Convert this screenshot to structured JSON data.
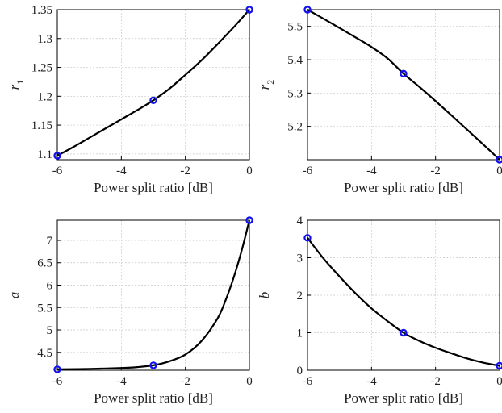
{
  "chart_data": [
    {
      "type": "line",
      "ylabel": "r",
      "ylabel_sub": "1",
      "xlabel": "Power split ratio [dB]",
      "xlim": [
        -6,
        0
      ],
      "ylim": [
        1.09,
        1.35
      ],
      "xticks": [
        -6,
        -4,
        -2,
        0
      ],
      "yticks": [
        1.1,
        1.15,
        1.2,
        1.25,
        1.3,
        1.35
      ],
      "ytick_labels": [
        "1.1",
        "1.15",
        "1.2",
        "1.25",
        "1.3",
        "1.35"
      ],
      "grid": true,
      "curve": {
        "x": [
          -6,
          -5.5,
          -5,
          -4.5,
          -4,
          -3.5,
          -3,
          -2.5,
          -2,
          -1.5,
          -1,
          -0.5,
          0
        ],
        "y": [
          1.097,
          1.112,
          1.128,
          1.144,
          1.16,
          1.176,
          1.193,
          1.213,
          1.237,
          1.262,
          1.29,
          1.319,
          1.35
        ]
      },
      "markers": {
        "x": [
          -6,
          -3,
          0
        ],
        "y": [
          1.097,
          1.193,
          1.35
        ]
      }
    },
    {
      "type": "line",
      "ylabel": "r",
      "ylabel_sub": "2",
      "xlabel": "Power split ratio [dB]",
      "xlim": [
        -6,
        0
      ],
      "ylim": [
        5.1,
        5.55
      ],
      "xticks": [
        -6,
        -4,
        -2,
        0
      ],
      "yticks": [
        5.2,
        5.3,
        5.4,
        5.5
      ],
      "ytick_labels": [
        "5.2",
        "5.3",
        "5.4",
        "5.5"
      ],
      "grid": true,
      "curve": {
        "x": [
          -6,
          -5.5,
          -5,
          -4.5,
          -4,
          -3.5,
          -3,
          -2.5,
          -2,
          -1.5,
          -1,
          -0.5,
          0
        ],
        "y": [
          5.55,
          5.523,
          5.495,
          5.467,
          5.438,
          5.404,
          5.358,
          5.318,
          5.276,
          5.233,
          5.189,
          5.145,
          5.1
        ]
      },
      "markers": {
        "x": [
          -6,
          -3,
          0
        ],
        "y": [
          5.55,
          5.358,
          5.1
        ]
      }
    },
    {
      "type": "line",
      "ylabel": "a",
      "xlabel": "Power split ratio [dB]",
      "xlim": [
        -6,
        0
      ],
      "ylim": [
        4.1,
        7.45
      ],
      "xticks": [
        -6,
        -4,
        -2,
        0
      ],
      "yticks": [
        4.5,
        5,
        5.5,
        6,
        6.5,
        7
      ],
      "ytick_labels": [
        "4.5",
        "5",
        "5.5",
        "6",
        "6.5",
        "7"
      ],
      "grid": true,
      "curve": {
        "x": [
          -6,
          -5,
          -4,
          -3.5,
          -3,
          -2.5,
          -2,
          -1.5,
          -1,
          -0.75,
          -0.5,
          -0.25,
          0
        ],
        "y": [
          4.12,
          4.13,
          4.15,
          4.17,
          4.21,
          4.3,
          4.45,
          4.75,
          5.25,
          5.65,
          6.15,
          6.75,
          7.45
        ]
      },
      "markers": {
        "x": [
          -6,
          -3,
          0
        ],
        "y": [
          4.12,
          4.21,
          7.45
        ]
      }
    },
    {
      "type": "line",
      "ylabel": "b",
      "xlabel": "Power split ratio [dB]",
      "xlim": [
        -6,
        0
      ],
      "ylim": [
        0,
        4
      ],
      "xticks": [
        -6,
        -4,
        -2,
        0
      ],
      "yticks": [
        0,
        1,
        2,
        3,
        4
      ],
      "ytick_labels": [
        "0",
        "1",
        "2",
        "3",
        "4"
      ],
      "grid": true,
      "curve": {
        "x": [
          -6,
          -5.5,
          -5,
          -4.5,
          -4,
          -3.5,
          -3,
          -2.5,
          -2,
          -1.5,
          -1,
          -0.5,
          0
        ],
        "y": [
          3.53,
          2.98,
          2.5,
          2.05,
          1.65,
          1.31,
          1.0,
          0.78,
          0.6,
          0.45,
          0.31,
          0.2,
          0.12
        ]
      },
      "markers": {
        "x": [
          -6,
          -3,
          0
        ],
        "y": [
          3.53,
          1.0,
          0.12
        ]
      }
    }
  ]
}
